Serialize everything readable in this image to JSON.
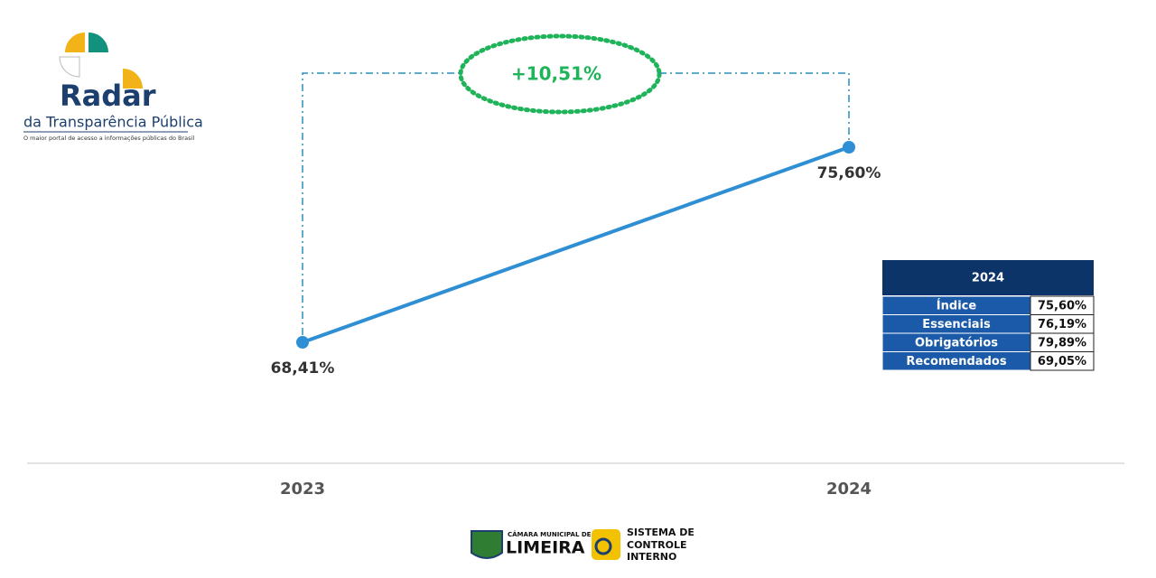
{
  "chart_data": {
    "type": "line",
    "categories": [
      "2023",
      "2024"
    ],
    "values": [
      68.41,
      75.6
    ],
    "value_labels": [
      "68,41%",
      "75,60%"
    ],
    "color": "#2e8fd4",
    "annotation": "+10,51%"
  },
  "table": {
    "header": "2024",
    "rows": [
      [
        "Índice",
        "75,60%"
      ],
      [
        "Essenciais",
        "76,19%"
      ],
      [
        "Obrigatórios",
        "79,89%"
      ],
      [
        "Recomendados",
        "69,05%"
      ]
    ]
  },
  "logo": {
    "title": "Radar",
    "subtitle": "da Transparência Pública",
    "tagline": "O maior portal de acesso a informações públicas do Brasil"
  },
  "footer": {
    "camara_top": "CÂMARA MUNICIPAL DE",
    "camara_name": "LIMEIRA",
    "sci_lines": [
      "SISTEMA DE",
      "CONTROLE",
      "INTERNO"
    ]
  }
}
